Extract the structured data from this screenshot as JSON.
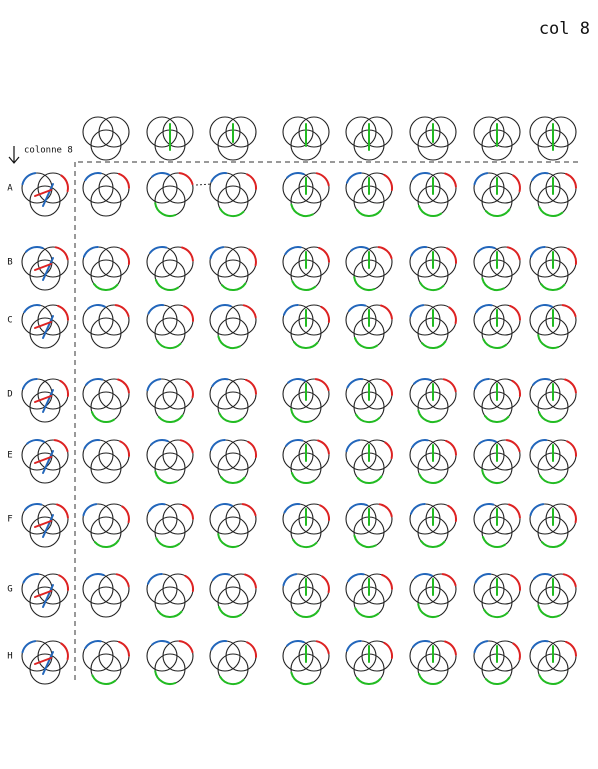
{
  "header": {
    "title": "col 8",
    "column_label": "colonne 8"
  },
  "row_labels": [
    "A",
    "B",
    "C",
    "D",
    "E",
    "F",
    "G",
    "H"
  ]
}
